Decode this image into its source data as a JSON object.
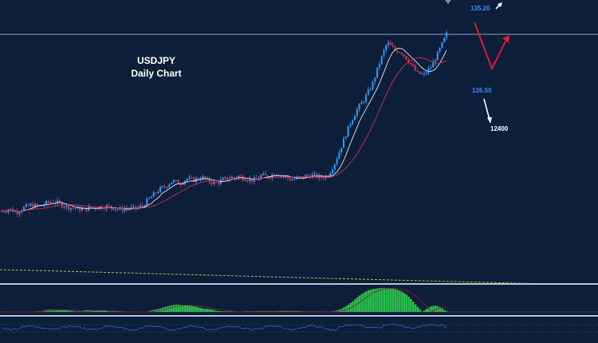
{
  "chart_data": {
    "type": "candlestick",
    "title": "USDJPY",
    "subtitle": "Daily Chart",
    "annotations": {
      "upper_target": "135.20",
      "lower_target": "126.50",
      "deep_target": "12400"
    },
    "price_series": [
      104.2,
      104.6,
      104.0,
      104.8,
      105.3,
      105.0,
      105.6,
      106.0,
      105.4,
      104.9,
      104.7,
      104.5,
      104.8,
      104.9,
      105.1,
      104.8,
      104.5,
      104.7,
      104.6,
      105.2,
      106.5,
      107.8,
      108.6,
      109.6,
      109.2,
      110.0,
      109.8,
      110.3,
      109.5,
      109.2,
      109.9,
      110.2,
      110.5,
      110.0,
      109.7,
      110.6,
      110.4,
      111.1,
      110.5,
      109.9,
      110.0,
      110.5,
      110.6,
      110.2,
      110.6,
      113.0,
      116.5,
      120.0,
      122.6,
      124.5,
      127.0,
      131.0,
      134.5,
      133.2,
      132.7,
      131.0,
      129.0,
      128.7,
      130.3,
      133.0,
      136.0
    ],
    "colors": {
      "background": "#0c1e3a",
      "up_candle": "#2f9bff",
      "down_candle": "#e0344f",
      "ma_fast": "#e8e8e8",
      "ma_slow": "#c8324f",
      "arrow_up": "#ffffff",
      "arrow_red": "#e01b2e",
      "histogram": "#28c04a",
      "signal_line": "#8a1f2d",
      "dashed_line": "#a8c83c",
      "oscillator": "#2f66d8",
      "label_blue": "#3e8eff",
      "panel_separator": "#b9c4d4"
    }
  }
}
